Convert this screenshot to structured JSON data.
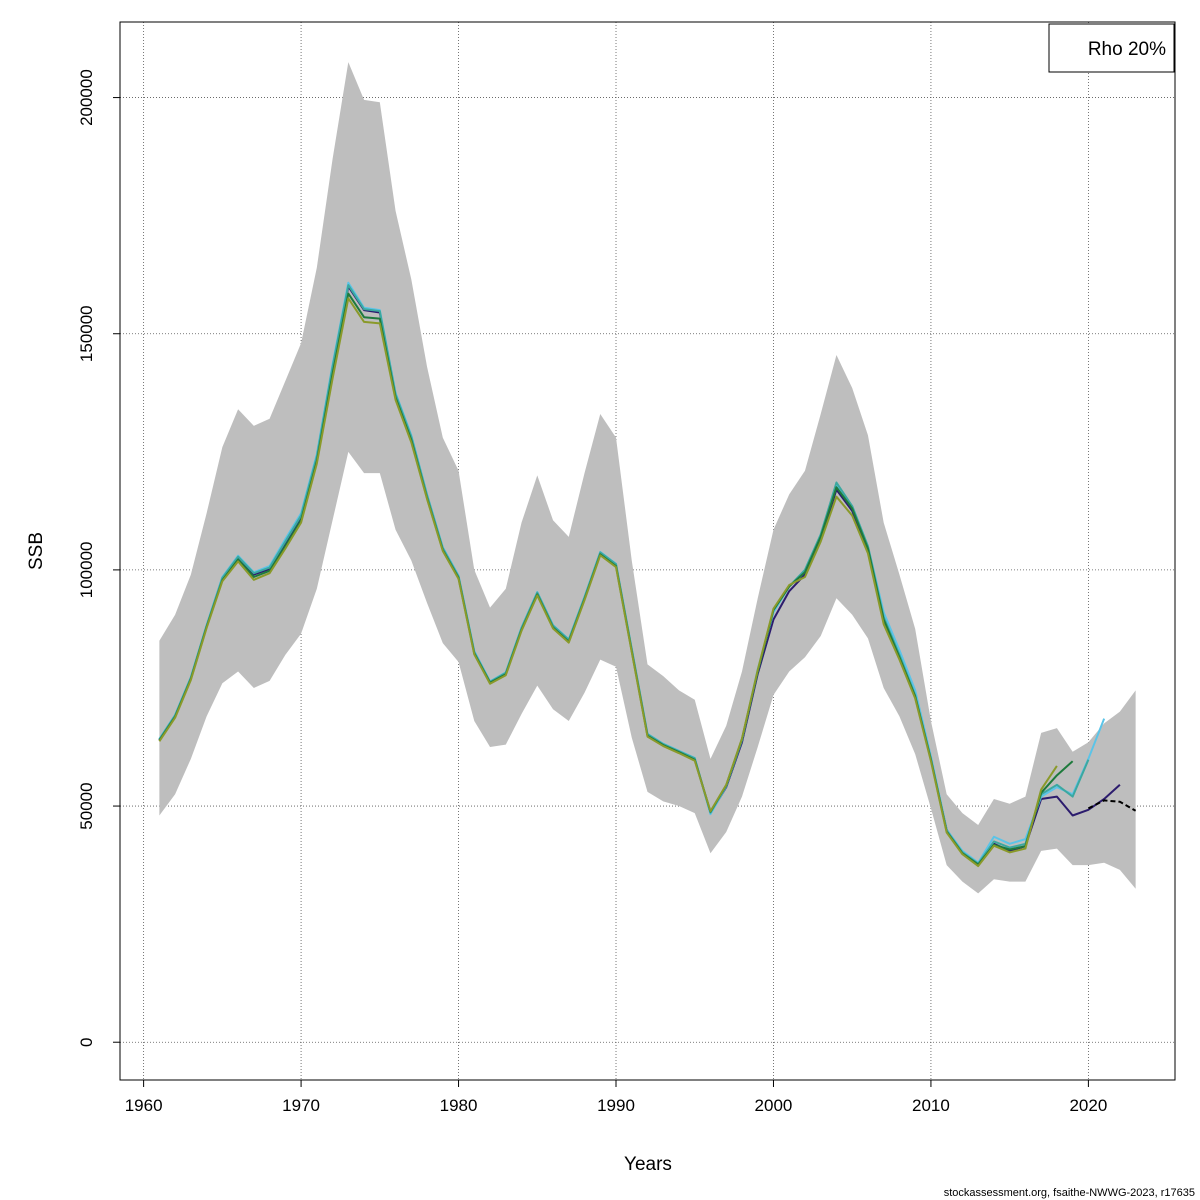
{
  "chart_data": {
    "type": "line",
    "title": "",
    "xlabel": "Years",
    "ylabel": "SSB",
    "xlim": [
      1958.5,
      2025.5
    ],
    "ylim": [
      -8000,
      216000
    ],
    "x_ticks": [
      1960,
      1970,
      1980,
      1990,
      2000,
      2010,
      2020
    ],
    "y_ticks": [
      0,
      50000,
      100000,
      150000,
      200000
    ],
    "grid": true,
    "legend": {
      "placement": "top-right",
      "entries": [
        "Rho 20%"
      ]
    },
    "footer": "stockassessment.org, fsaithe-NWWG-2023, r17635",
    "confidence_band": {
      "x": [
        1961,
        1962,
        1963,
        1964,
        1965,
        1966,
        1967,
        1968,
        1969,
        1970,
        1971,
        1972,
        1973,
        1974,
        1975,
        1976,
        1977,
        1978,
        1979,
        1980,
        1981,
        1982,
        1983,
        1984,
        1985,
        1986,
        1987,
        1988,
        1989,
        1990,
        1991,
        1992,
        1993,
        1994,
        1995,
        1996,
        1997,
        1998,
        1999,
        2000,
        2001,
        2002,
        2003,
        2004,
        2005,
        2006,
        2007,
        2008,
        2009,
        2010,
        2011,
        2012,
        2013,
        2014,
        2015,
        2016,
        2017,
        2018,
        2019,
        2020,
        2021,
        2022,
        2023
      ],
      "upper": [
        85000,
        90500,
        99000,
        112000,
        126000,
        134000,
        130500,
        132000,
        140000,
        148000,
        164000,
        187000,
        207500,
        199500,
        199000,
        176000,
        161500,
        143000,
        128000,
        121000,
        100000,
        92000,
        96000,
        110000,
        120000,
        110500,
        107000,
        120500,
        133000,
        128000,
        102000,
        80000,
        77500,
        74500,
        72500,
        60000,
        67000,
        78500,
        94000,
        108500,
        116000,
        121000,
        133000,
        145500,
        138500,
        128500,
        110000,
        99000,
        87500,
        68000,
        52500,
        48500,
        46000,
        51500,
        50500,
        52000,
        65500,
        66500,
        61500,
        63500,
        67500,
        70000,
        74500
      ],
      "lower": [
        48000,
        52500,
        60000,
        69000,
        76000,
        78500,
        75000,
        76500,
        82000,
        86500,
        96000,
        110500,
        125000,
        120500,
        120500,
        108500,
        102000,
        93000,
        84500,
        80500,
        68000,
        62500,
        63000,
        69500,
        75500,
        70500,
        68000,
        74000,
        81000,
        79500,
        64500,
        53000,
        51000,
        50000,
        48500,
        40000,
        44500,
        52000,
        62500,
        73500,
        78500,
        81500,
        86000,
        94000,
        90500,
        85500,
        75000,
        69000,
        61000,
        49500,
        37500,
        34000,
        31500,
        34500,
        34000,
        34000,
        40500,
        41000,
        37500,
        37500,
        38000,
        36500,
        32500
      ]
    },
    "series": [
      {
        "color": "#000000",
        "dash": "5,3",
        "x": [
          2020,
          2021,
          2022,
          2023
        ],
        "values": [
          49500,
          51200,
          50900,
          49000
        ]
      },
      {
        "color": "#2C1C6E",
        "dash": "",
        "x": [
          1961,
          1962,
          1963,
          1964,
          1965,
          1966,
          1967,
          1968,
          1969,
          1970,
          1971,
          1972,
          1973,
          1974,
          1975,
          1976,
          1977,
          1978,
          1979,
          1980,
          1981,
          1982,
          1983,
          1984,
          1985,
          1986,
          1987,
          1988,
          1989,
          1990,
          1991,
          1992,
          1993,
          1994,
          1995,
          1996,
          1997,
          1998,
          1999,
          2000,
          2001,
          2002,
          2003,
          2004,
          2005,
          2006,
          2007,
          2008,
          2009,
          2010,
          2011,
          2012,
          2013,
          2014,
          2015,
          2016,
          2017,
          2018,
          2019,
          2020,
          2021,
          2022
        ],
        "values": [
          64000,
          69000,
          77000,
          88000,
          98000,
          102500,
          99000,
          100200,
          105500,
          111000,
          123500,
          142500,
          160000,
          155000,
          154500,
          137000,
          128000,
          115500,
          104500,
          98500,
          82500,
          76200,
          78000,
          87500,
          95000,
          88000,
          85000,
          94000,
          103500,
          101000,
          83000,
          65000,
          63000,
          61500,
          60000,
          48500,
          54000,
          63500,
          78000,
          89500,
          95500,
          99000,
          106500,
          117000,
          112500,
          104000,
          89500,
          81500,
          73000,
          60000,
          45000,
          40000,
          37500,
          42000,
          40500,
          41500,
          51500,
          52000,
          48000,
          49200,
          51500,
          54500
        ]
      },
      {
        "color": "#5BC4E8",
        "dash": "",
        "x": [
          1961,
          1962,
          1963,
          1964,
          1965,
          1966,
          1967,
          1968,
          1969,
          1970,
          1971,
          1972,
          1973,
          1974,
          1975,
          1976,
          1977,
          1978,
          1979,
          1980,
          1981,
          1982,
          1983,
          1984,
          1985,
          1986,
          1987,
          1988,
          1989,
          1990,
          1991,
          1992,
          1993,
          1994,
          1995,
          1996,
          1997,
          1998,
          1999,
          2000,
          2001,
          2002,
          2003,
          2004,
          2005,
          2006,
          2007,
          2008,
          2009,
          2010,
          2011,
          2012,
          2013,
          2014,
          2015,
          2016,
          2017,
          2018,
          2019,
          2020,
          2021
        ],
        "values": [
          64200,
          69300,
          77300,
          88300,
          98500,
          103000,
          99500,
          100800,
          106500,
          112000,
          124500,
          143500,
          160800,
          155500,
          155000,
          137500,
          128500,
          116000,
          104800,
          98800,
          82800,
          76400,
          78300,
          87800,
          95300,
          88300,
          85300,
          94300,
          103800,
          101300,
          83300,
          65300,
          63200,
          61700,
          60200,
          48300,
          54200,
          64000,
          79000,
          91000,
          96500,
          100000,
          107500,
          118000,
          113500,
          105000,
          91000,
          83000,
          74500,
          60500,
          45000,
          40500,
          38000,
          43500,
          42000,
          43000,
          52000,
          54000,
          52500,
          60000,
          68500
        ]
      },
      {
        "color": "#3BA8A0",
        "dash": "",
        "x": [
          1961,
          1962,
          1963,
          1964,
          1965,
          1966,
          1967,
          1968,
          1969,
          1970,
          1971,
          1972,
          1973,
          1974,
          1975,
          1976,
          1977,
          1978,
          1979,
          1980,
          1981,
          1982,
          1983,
          1984,
          1985,
          1986,
          1987,
          1988,
          1989,
          1990,
          1991,
          1992,
          1993,
          1994,
          1995,
          1996,
          1997,
          1998,
          1999,
          2000,
          2001,
          2002,
          2003,
          2004,
          2005,
          2006,
          2007,
          2008,
          2009,
          2010,
          2011,
          2012,
          2013,
          2014,
          2015,
          2016,
          2017,
          2018,
          2019,
          2020
        ],
        "values": [
          64100,
          69200,
          77200,
          88200,
          98300,
          102800,
          99300,
          100500,
          106000,
          111500,
          124000,
          143000,
          160300,
          155200,
          154800,
          137200,
          128200,
          115800,
          104600,
          98600,
          82600,
          76300,
          78200,
          87700,
          95200,
          88200,
          85200,
          94200,
          103700,
          101200,
          83200,
          65200,
          63100,
          61600,
          60100,
          48600,
          54300,
          64000,
          78500,
          91500,
          96500,
          100000,
          107500,
          118500,
          113500,
          105000,
          90000,
          82000,
          73500,
          60000,
          44800,
          40200,
          37800,
          42500,
          41200,
          42000,
          52500,
          54500,
          52000,
          59800
        ]
      },
      {
        "color": "#1E7A3C",
        "dash": "",
        "x": [
          1961,
          1962,
          1963,
          1964,
          1965,
          1966,
          1967,
          1968,
          1969,
          1970,
          1971,
          1972,
          1973,
          1974,
          1975,
          1976,
          1977,
          1978,
          1979,
          1980,
          1981,
          1982,
          1983,
          1984,
          1985,
          1986,
          1987,
          1988,
          1989,
          1990,
          1991,
          1992,
          1993,
          1994,
          1995,
          1996,
          1997,
          1998,
          1999,
          2000,
          2001,
          2002,
          2003,
          2004,
          2005,
          2006,
          2007,
          2008,
          2009,
          2010,
          2011,
          2012,
          2013,
          2014,
          2015,
          2016,
          2017,
          2018,
          2019
        ],
        "values": [
          63900,
          68900,
          76900,
          87900,
          97800,
          102200,
          98500,
          99800,
          105000,
          110500,
          123000,
          141500,
          158500,
          153500,
          153200,
          136500,
          127500,
          115200,
          104200,
          98300,
          82300,
          76100,
          77900,
          87300,
          94800,
          87800,
          84800,
          93800,
          103300,
          100800,
          82800,
          64900,
          62900,
          61400,
          59800,
          48800,
          54400,
          64200,
          78500,
          91500,
          96500,
          99500,
          107000,
          117500,
          113000,
          104500,
          89500,
          81500,
          73200,
          59800,
          44600,
          40000,
          37600,
          41800,
          40800,
          41500,
          52800,
          56500,
          59500
        ]
      },
      {
        "color": "#8A9A2A",
        "dash": "",
        "x": [
          1961,
          1962,
          1963,
          1964,
          1965,
          1966,
          1967,
          1968,
          1969,
          1970,
          1971,
          1972,
          1973,
          1974,
          1975,
          1976,
          1977,
          1978,
          1979,
          1980,
          1981,
          1982,
          1983,
          1984,
          1985,
          1986,
          1987,
          1988,
          1989,
          1990,
          1991,
          1992,
          1993,
          1994,
          1995,
          1996,
          1997,
          1998,
          1999,
          2000,
          2001,
          2002,
          2003,
          2004,
          2005,
          2006,
          2007,
          2008,
          2009,
          2010,
          2011,
          2012,
          2013,
          2014,
          2015,
          2016,
          2017,
          2018
        ],
        "values": [
          63700,
          68700,
          76700,
          87700,
          97600,
          101800,
          97900,
          99300,
          104500,
          110000,
          122500,
          140500,
          157500,
          152500,
          152200,
          136000,
          127000,
          115000,
          104000,
          98100,
          82100,
          75900,
          77700,
          87100,
          94600,
          87600,
          84600,
          93600,
          103100,
          100600,
          82600,
          64700,
          62700,
          61200,
          59600,
          48900,
          54500,
          64300,
          78800,
          91800,
          96800,
          98500,
          106000,
          115500,
          111500,
          103500,
          88500,
          81000,
          72800,
          59500,
          44400,
          39800,
          37300,
          41600,
          40200,
          41000,
          53500,
          58500
        ]
      }
    ]
  }
}
